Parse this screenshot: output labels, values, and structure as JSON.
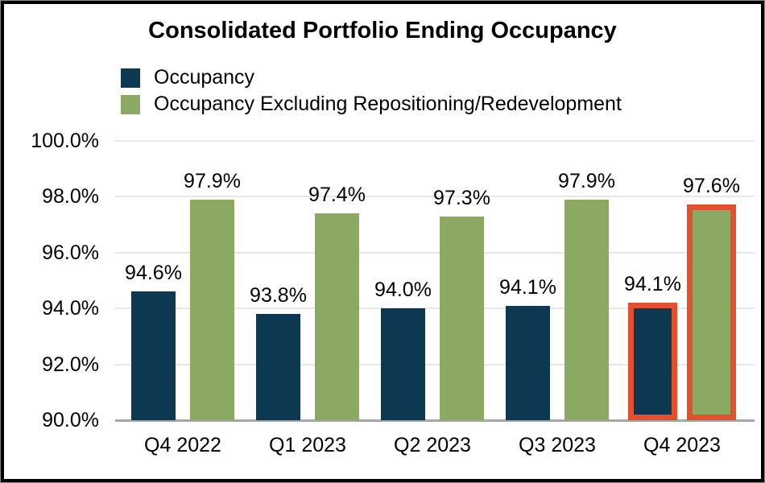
{
  "window": {
    "background": "#ffffff",
    "frame_border_color": "#000000",
    "gridline_color": "#e7e7e7",
    "axis_line_color": "#a6a6a6"
  },
  "chart_data": {
    "type": "bar",
    "title": "Consolidated Portfolio Ending Occupancy",
    "categories": [
      "Q4 2022",
      "Q1 2023",
      "Q2 2023",
      "Q3 2023",
      "Q4 2023"
    ],
    "series": [
      {
        "name": "Occupancy",
        "color": "#0d3852",
        "values": [
          94.6,
          93.8,
          94.0,
          94.1,
          94.1
        ],
        "labels": [
          "94.6%",
          "93.8%",
          "94.0%",
          "94.1%",
          "94.1%"
        ]
      },
      {
        "name": "Occupancy Excluding Repositioning/Redevelopment",
        "color": "#8ca963",
        "values": [
          97.9,
          97.4,
          97.3,
          97.9,
          97.6
        ],
        "labels": [
          "97.9%",
          "97.4%",
          "97.3%",
          "97.9%",
          "97.6%"
        ]
      }
    ],
    "yticks": [
      {
        "value": 100.0,
        "label": "100.0%"
      },
      {
        "value": 98.0,
        "label": "98.0%"
      },
      {
        "value": 96.0,
        "label": "96.0%"
      },
      {
        "value": 94.0,
        "label": "94.0%"
      },
      {
        "value": 92.0,
        "label": "92.0%"
      },
      {
        "value": 90.0,
        "label": "90.0%"
      }
    ],
    "ylim": [
      90,
      100
    ],
    "grid": "horizontal",
    "legend_position": "top-left",
    "highlight": {
      "category": "Q4 2023",
      "index": 4,
      "border_color": "#e2502e"
    }
  }
}
